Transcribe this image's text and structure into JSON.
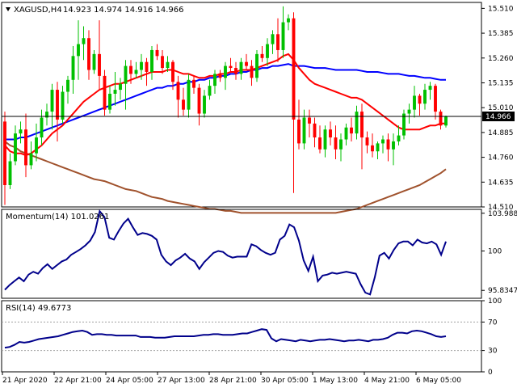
{
  "header": {
    "symbol_label": "XAGUSD,H4",
    "ohlc_label": "14.923 14.974 14.916 14.966"
  },
  "chart_data": [
    {
      "type": "candlestick",
      "name": "XAGUSD,H4",
      "y_ticks": [
        "15.510",
        "15.385",
        "15.260",
        "15.135",
        "15.010",
        "14.885",
        "14.760",
        "14.635",
        "14.510"
      ],
      "ylim": [
        14.51,
        15.54
      ],
      "current_price_label": "14.966",
      "current_price": 14.966,
      "colors": {
        "bull": "#00c000",
        "bear": "#ff0000",
        "sma_fast": "#ff0000",
        "sma_mid": "#0000ff",
        "sma_slow": "#a0522d"
      },
      "candles": [
        [
          14.94,
          14.99,
          14.52,
          14.62
        ],
        [
          14.62,
          14.78,
          14.6,
          14.74
        ],
        [
          14.74,
          14.92,
          14.72,
          14.88
        ],
        [
          14.88,
          14.94,
          14.83,
          14.9
        ],
        [
          14.9,
          14.98,
          14.66,
          14.72
        ],
        [
          14.72,
          14.84,
          14.7,
          14.78
        ],
        [
          14.78,
          14.93,
          14.74,
          14.86
        ],
        [
          14.86,
          15.0,
          14.82,
          14.96
        ],
        [
          14.96,
          15.03,
          14.92,
          14.99
        ],
        [
          14.99,
          15.13,
          14.9,
          15.1
        ],
        [
          15.1,
          15.14,
          14.84,
          14.95
        ],
        [
          14.95,
          15.12,
          14.93,
          15.09
        ],
        [
          15.09,
          15.17,
          15.03,
          15.15
        ],
        [
          15.15,
          15.32,
          15.08,
          15.27
        ],
        [
          15.27,
          15.45,
          15.15,
          15.33
        ],
        [
          15.33,
          15.42,
          15.25,
          15.36
        ],
        [
          15.36,
          15.4,
          15.15,
          15.2
        ],
        [
          15.2,
          15.3,
          15.18,
          15.28
        ],
        [
          15.28,
          15.45,
          15.1,
          15.17
        ],
        [
          15.17,
          15.2,
          14.97,
          15.0
        ],
        [
          15.0,
          15.12,
          14.98,
          15.08
        ],
        [
          15.08,
          15.19,
          15.02,
          15.1
        ],
        [
          15.1,
          15.16,
          15.05,
          15.13
        ],
        [
          15.13,
          15.25,
          15.0,
          15.22
        ],
        [
          15.22,
          15.25,
          15.13,
          15.18
        ],
        [
          15.18,
          15.24,
          15.16,
          15.2
        ],
        [
          15.2,
          15.28,
          15.15,
          15.24
        ],
        [
          15.24,
          15.26,
          15.12,
          15.19
        ],
        [
          15.19,
          15.32,
          15.15,
          15.3
        ],
        [
          15.3,
          15.33,
          15.25,
          15.27
        ],
        [
          15.27,
          15.3,
          15.18,
          15.21
        ],
        [
          15.21,
          15.27,
          15.19,
          15.24
        ],
        [
          15.24,
          15.25,
          15.1,
          15.14
        ],
        [
          15.14,
          15.17,
          14.96,
          15.05
        ],
        [
          15.05,
          15.11,
          14.97,
          15.0
        ],
        [
          15.0,
          15.18,
          14.96,
          15.15
        ],
        [
          15.15,
          15.17,
          15.08,
          15.11
        ],
        [
          15.11,
          15.13,
          14.92,
          14.98
        ],
        [
          14.98,
          15.1,
          14.96,
          15.07
        ],
        [
          15.07,
          15.15,
          15.05,
          15.12
        ],
        [
          15.12,
          15.2,
          15.08,
          15.18
        ],
        [
          15.18,
          15.2,
          15.14,
          15.16
        ],
        [
          15.16,
          15.24,
          15.1,
          15.22
        ],
        [
          15.22,
          15.26,
          15.19,
          15.21
        ],
        [
          15.21,
          15.24,
          15.15,
          15.18
        ],
        [
          15.18,
          15.26,
          15.15,
          15.24
        ],
        [
          15.24,
          15.28,
          15.2,
          15.22
        ],
        [
          15.22,
          15.25,
          15.12,
          15.16
        ],
        [
          15.16,
          15.3,
          15.14,
          15.28
        ],
        [
          15.28,
          15.32,
          15.24,
          15.26
        ],
        [
          15.26,
          15.36,
          15.22,
          15.33
        ],
        [
          15.33,
          15.4,
          15.28,
          15.38
        ],
        [
          15.38,
          15.46,
          15.24,
          15.3
        ],
        [
          15.3,
          15.52,
          15.26,
          15.44
        ],
        [
          15.44,
          15.48,
          15.4,
          15.46
        ],
        [
          15.46,
          15.49,
          14.58,
          14.95
        ],
        [
          14.95,
          15.05,
          14.8,
          14.83
        ],
        [
          14.83,
          15.0,
          14.8,
          14.96
        ],
        [
          14.96,
          15.0,
          14.86,
          14.93
        ],
        [
          14.93,
          14.96,
          14.81,
          14.86
        ],
        [
          14.86,
          14.92,
          14.78,
          14.8
        ],
        [
          14.8,
          14.92,
          14.76,
          14.9
        ],
        [
          14.9,
          14.94,
          14.82,
          14.86
        ],
        [
          14.86,
          14.92,
          14.75,
          14.8
        ],
        [
          14.8,
          14.88,
          14.74,
          14.85
        ],
        [
          14.85,
          14.93,
          14.82,
          14.91
        ],
        [
          14.91,
          14.96,
          14.84,
          14.88
        ],
        [
          14.88,
          15.02,
          14.85,
          14.99
        ],
        [
          14.99,
          15.03,
          14.7,
          14.86
        ],
        [
          14.86,
          14.89,
          14.78,
          14.82
        ],
        [
          14.82,
          14.88,
          14.76,
          14.79
        ],
        [
          14.79,
          14.84,
          14.75,
          14.83
        ],
        [
          14.83,
          14.87,
          14.78,
          14.85
        ],
        [
          14.85,
          14.88,
          14.74,
          14.8
        ],
        [
          14.8,
          14.88,
          14.72,
          14.84
        ],
        [
          14.84,
          14.92,
          14.82,
          14.87
        ],
        [
          14.87,
          15.0,
          14.85,
          14.98
        ],
        [
          14.98,
          15.03,
          14.93,
          15.0
        ],
        [
          15.0,
          15.12,
          14.96,
          15.07
        ],
        [
          15.07,
          15.08,
          14.97,
          15.03
        ],
        [
          15.03,
          15.13,
          15.0,
          15.1
        ],
        [
          15.1,
          15.14,
          15.05,
          15.12
        ],
        [
          15.12,
          15.13,
          14.95,
          14.99
        ],
        [
          14.99,
          15.0,
          14.9,
          14.92
        ],
        [
          14.92,
          14.97,
          14.91,
          14.966
        ]
      ],
      "sma_fast": [
        14.82,
        14.79,
        14.78,
        14.78,
        14.77,
        14.78,
        14.8,
        14.82,
        14.85,
        14.88,
        14.9,
        14.92,
        14.95,
        14.98,
        15.01,
        15.04,
        15.06,
        15.08,
        15.1,
        15.11,
        15.12,
        15.13,
        15.13,
        15.14,
        15.15,
        15.16,
        15.17,
        15.18,
        15.19,
        15.19,
        15.19,
        15.2,
        15.2,
        15.19,
        15.18,
        15.18,
        15.17,
        15.16,
        15.16,
        15.17,
        15.17,
        15.18,
        15.18,
        15.19,
        15.19,
        15.2,
        15.2,
        15.2,
        15.21,
        15.22,
        15.23,
        15.24,
        15.25,
        15.27,
        15.28,
        15.25,
        15.21,
        15.18,
        15.15,
        15.13,
        15.12,
        15.11,
        15.1,
        15.09,
        15.08,
        15.07,
        15.06,
        15.06,
        15.05,
        15.03,
        15.01,
        14.99,
        14.97,
        14.95,
        14.93,
        14.91,
        14.9,
        14.9,
        14.9,
        14.9,
        14.91,
        14.92,
        14.92,
        14.93,
        14.93
      ],
      "sma_mid": [
        14.85,
        14.85,
        14.85,
        14.86,
        14.86,
        14.87,
        14.88,
        14.89,
        14.9,
        14.91,
        14.92,
        14.93,
        14.94,
        14.95,
        14.96,
        14.97,
        14.98,
        14.99,
        15.0,
        15.01,
        15.02,
        15.03,
        15.04,
        15.05,
        15.06,
        15.07,
        15.08,
        15.09,
        15.1,
        15.11,
        15.11,
        15.12,
        15.12,
        15.13,
        15.13,
        15.14,
        15.14,
        15.15,
        15.15,
        15.16,
        15.16,
        15.17,
        15.17,
        15.18,
        15.18,
        15.19,
        15.19,
        15.2,
        15.2,
        15.21,
        15.21,
        15.22,
        15.22,
        15.225,
        15.23,
        15.22,
        15.22,
        15.22,
        15.215,
        15.21,
        15.21,
        15.21,
        15.205,
        15.2,
        15.2,
        15.2,
        15.2,
        15.2,
        15.195,
        15.19,
        15.19,
        15.19,
        15.185,
        15.18,
        15.18,
        15.18,
        15.175,
        15.17,
        15.17,
        15.165,
        15.16,
        15.16,
        15.155,
        15.15,
        15.15
      ],
      "sma_slow": [
        14.84,
        14.82,
        14.81,
        14.79,
        14.78,
        14.77,
        14.76,
        14.75,
        14.74,
        14.73,
        14.72,
        14.71,
        14.7,
        14.69,
        14.68,
        14.67,
        14.66,
        14.65,
        14.645,
        14.64,
        14.63,
        14.62,
        14.61,
        14.6,
        14.595,
        14.59,
        14.58,
        14.57,
        14.56,
        14.555,
        14.55,
        14.54,
        14.535,
        14.53,
        14.525,
        14.52,
        14.515,
        14.51,
        14.505,
        14.5,
        14.5,
        14.495,
        14.49,
        14.49,
        14.485,
        14.48,
        14.48,
        14.48,
        14.48,
        14.48,
        14.48,
        14.48,
        14.48,
        14.48,
        14.48,
        14.48,
        14.48,
        14.48,
        14.48,
        14.48,
        14.48,
        14.48,
        14.48,
        14.48,
        14.485,
        14.49,
        14.495,
        14.5,
        14.51,
        14.52,
        14.53,
        14.54,
        14.55,
        14.56,
        14.57,
        14.58,
        14.59,
        14.6,
        14.61,
        14.62,
        14.635,
        14.65,
        14.665,
        14.68,
        14.7
      ]
    },
    {
      "type": "line",
      "name": "Momentum(14) 101.0261",
      "y_ticks": [
        "103.9882",
        "100",
        "95.8347"
      ],
      "ylim": [
        95.0,
        104.4
      ],
      "color": "#00008b",
      "values": [
        95.9,
        96.4,
        96.8,
        97.2,
        96.8,
        97.5,
        97.8,
        97.6,
        98.2,
        98.6,
        98.1,
        98.5,
        98.9,
        99.1,
        99.6,
        99.9,
        100.2,
        100.6,
        101.1,
        102.0,
        104.2,
        103.6,
        101.4,
        101.2,
        102.1,
        102.9,
        103.4,
        102.5,
        101.7,
        101.9,
        101.8,
        101.6,
        101.2,
        99.6,
        98.9,
        98.5,
        99.0,
        99.3,
        99.7,
        99.2,
        98.9,
        98.1,
        98.8,
        99.3,
        99.8,
        100.0,
        99.9,
        99.5,
        99.3,
        99.4,
        99.4,
        99.4,
        100.7,
        100.5,
        100.1,
        99.8,
        99.6,
        99.8,
        101.2,
        101.6,
        102.8,
        102.5,
        101.1,
        99.0,
        97.9,
        99.4,
        96.8,
        97.4,
        97.5,
        97.7,
        97.6,
        97.7,
        97.8,
        97.7,
        97.6,
        96.5,
        95.6,
        95.4,
        97.2,
        99.5,
        99.8,
        99.2,
        100.1,
        100.8,
        101.0,
        101.0,
        100.6,
        101.2,
        100.9,
        100.8,
        101.0,
        100.7,
        99.6,
        101.0
      ]
    },
    {
      "type": "line",
      "name": "RSI(14) 49.6773",
      "y_ticks": [
        "100",
        "70",
        "30",
        "0"
      ],
      "levels": [
        70,
        30
      ],
      "ylim": [
        0,
        100
      ],
      "color": "#00008b",
      "values": [
        34,
        35,
        38,
        42,
        41,
        42,
        44,
        46,
        47,
        48,
        49,
        50,
        52,
        54,
        56,
        57,
        58,
        56,
        52,
        53,
        53,
        52,
        52,
        51,
        51,
        51,
        51,
        51,
        49,
        49,
        49,
        48,
        48,
        48,
        49,
        50,
        50,
        50,
        50,
        50,
        51,
        52,
        52,
        53,
        53,
        52,
        52,
        52,
        53,
        54,
        54,
        56,
        58,
        60,
        59,
        47,
        43,
        46,
        45,
        44,
        43,
        45,
        44,
        43,
        44,
        45,
        45,
        46,
        45,
        44,
        43,
        44,
        44,
        45,
        44,
        43,
        45,
        45,
        46,
        48,
        52,
        55,
        55,
        54,
        57,
        58,
        57,
        55,
        53,
        50,
        49,
        50
      ]
    }
  ],
  "x_axis": {
    "labels": [
      "21 Apr 2020",
      "22 Apr 21:00",
      "24 Apr 05:00",
      "27 Apr 13:00",
      "28 Apr 21:00",
      "30 Apr 05:00",
      "1 May 13:00",
      "4 May 21:00",
      "6 May 05:00"
    ]
  }
}
